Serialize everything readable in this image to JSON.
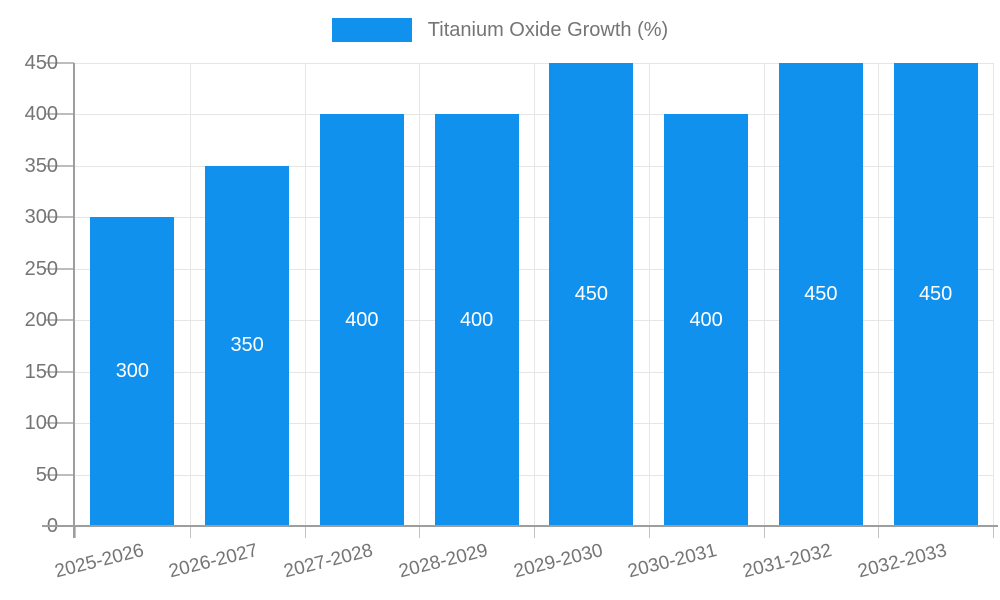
{
  "legend": {
    "label": "Titanium Oxide Growth (%)"
  },
  "chart_data": {
    "type": "bar",
    "title": "",
    "xlabel": "",
    "ylabel": "",
    "series_name": "Titanium Oxide Growth (%)",
    "categories": [
      "2025-2026",
      "2026-2027",
      "2027-2028",
      "2028-2029",
      "2029-2030",
      "2030-2031",
      "2031-2032",
      "2032-2033"
    ],
    "values": [
      300,
      350,
      400,
      400,
      450,
      400,
      450,
      450
    ],
    "bar_labels": [
      300,
      350,
      400,
      400,
      450,
      400,
      450,
      450
    ],
    "ylim": [
      0,
      450
    ],
    "y_ticks": [
      0,
      50,
      100,
      150,
      200,
      250,
      300,
      350,
      400,
      450
    ],
    "grid": true,
    "legend_position": "top",
    "colors": {
      "bar": "#1191ee",
      "bar_label": "#ffffff",
      "axis_text": "#757575",
      "grid_line": "#e6e6e6",
      "axis_line": "#9e9e9e",
      "tick_line": "#c2c2c2"
    }
  }
}
